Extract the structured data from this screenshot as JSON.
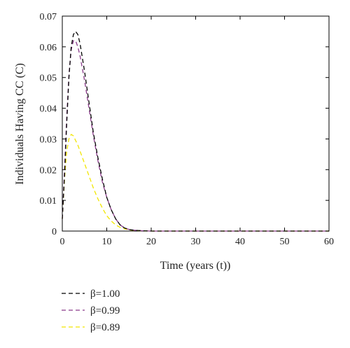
{
  "chart_data": {
    "type": "line",
    "xlabel": "Time (years (t))",
    "ylabel": "Individuals Having CC (C)",
    "xlim": [
      0,
      60
    ],
    "ylim": [
      0,
      0.07
    ],
    "xticks": [
      0,
      10,
      20,
      30,
      40,
      50,
      60
    ],
    "xtick_labels": [
      "0",
      "10",
      "20",
      "30",
      "40",
      "50",
      "60"
    ],
    "yticks": [
      0,
      0.01,
      0.02,
      0.03,
      0.04,
      0.05,
      0.06,
      0.07
    ],
    "ytick_labels": [
      "0",
      "0.01",
      "0.02",
      "0.03",
      "0.04",
      "0.05",
      "0.06",
      "0.07"
    ],
    "grid": false,
    "legend_position": "bottom-left, below axes",
    "series": [
      {
        "name": "β=1.00",
        "color": "#000000",
        "style": "dashed",
        "x": [
          0,
          0.5,
          1,
          1.5,
          2,
          2.5,
          3,
          3.5,
          4,
          5,
          6,
          7,
          8,
          9,
          10,
          11,
          12,
          13,
          14,
          15,
          16,
          18,
          20,
          25,
          30,
          40,
          50,
          60
        ],
        "y": [
          0.004,
          0.018,
          0.035,
          0.05,
          0.06,
          0.064,
          0.065,
          0.064,
          0.061,
          0.052,
          0.042,
          0.032,
          0.024,
          0.017,
          0.011,
          0.007,
          0.004,
          0.002,
          0.001,
          0.0005,
          0.0003,
          0.0001,
          0,
          0,
          0,
          0,
          0,
          0
        ]
      },
      {
        "name": "β=0.99",
        "color": "#8a3a8a",
        "style": "dashed",
        "x": [
          0,
          0.5,
          1,
          1.5,
          2,
          2.5,
          3,
          3.5,
          4,
          5,
          6,
          7,
          8,
          9,
          10,
          11,
          12,
          13,
          14,
          15,
          16,
          18,
          20,
          25,
          30,
          40,
          50,
          60
        ],
        "y": [
          0.004,
          0.02,
          0.037,
          0.051,
          0.059,
          0.062,
          0.062,
          0.06,
          0.057,
          0.049,
          0.04,
          0.031,
          0.023,
          0.016,
          0.011,
          0.007,
          0.004,
          0.002,
          0.001,
          0.0005,
          0.0003,
          0.0001,
          0,
          0,
          0,
          0,
          0,
          0
        ]
      },
      {
        "name": "β=0.89",
        "color": "#f2e600",
        "style": "dashed",
        "x": [
          0,
          0.5,
          1,
          1.5,
          2,
          2.5,
          3,
          3.5,
          4,
          5,
          6,
          7,
          8,
          9,
          10,
          11,
          12,
          13,
          14,
          15,
          16,
          18,
          20,
          25,
          30,
          40,
          50,
          60
        ],
        "y": [
          0.004,
          0.017,
          0.026,
          0.03,
          0.0315,
          0.031,
          0.0295,
          0.028,
          0.026,
          0.022,
          0.018,
          0.014,
          0.0105,
          0.0075,
          0.005,
          0.0033,
          0.002,
          0.0012,
          0.0007,
          0.0004,
          0.0002,
          0.0001,
          0,
          0,
          0,
          0,
          0,
          0
        ]
      }
    ]
  }
}
